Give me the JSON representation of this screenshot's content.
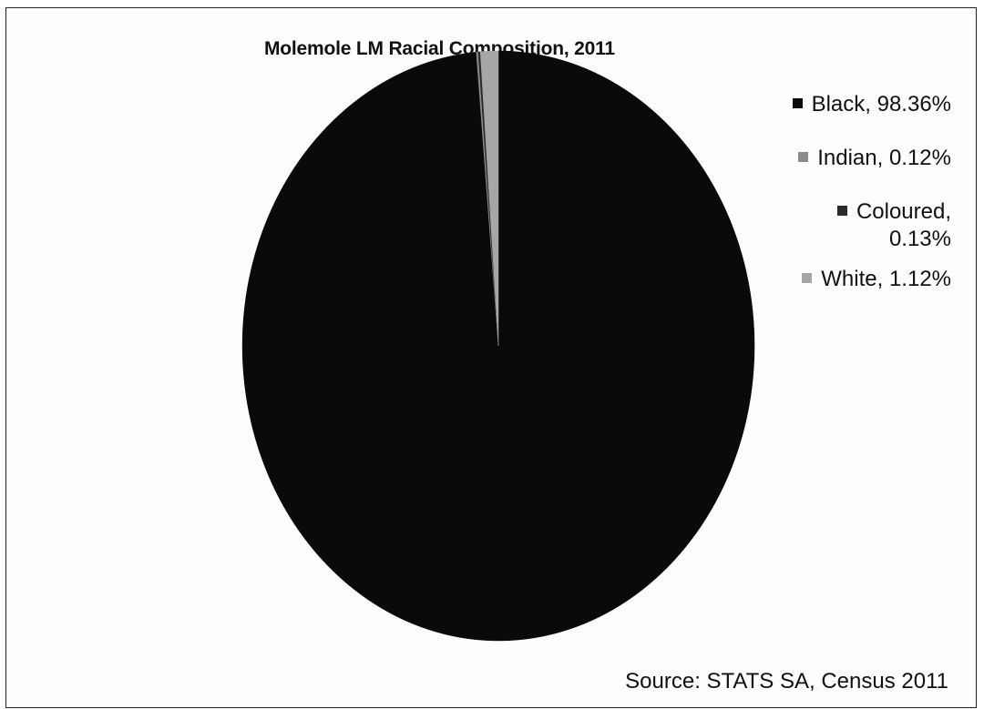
{
  "chart_data": {
    "type": "pie",
    "title": "Molemole LM Racial Composition, 2011",
    "slices": [
      {
        "label": "Black, 98.36%",
        "name": "Black",
        "value": 98.36,
        "color": "#0a0a0a"
      },
      {
        "label": "Indian, 0.12%",
        "name": "Indian",
        "value": 0.12,
        "color": "#8c8c8c"
      },
      {
        "label": "Coloured, 0.13%",
        "name": "Coloured",
        "value": 0.13,
        "color": "#2a2a2a"
      },
      {
        "label": "White, 1.12%",
        "name": "White",
        "value": 1.12,
        "color": "#a6a6a6"
      }
    ],
    "legend": {
      "placement": "right",
      "items": [
        {
          "line1": "Black, 98.36%",
          "line2": ""
        },
        {
          "line1": "Indian, 0.12%",
          "line2": ""
        },
        {
          "line1": "Coloured,",
          "line2": "0.13%"
        },
        {
          "line1": "White, 1.12%",
          "line2": ""
        }
      ]
    },
    "source": "Source: STATS SA, Census 2011"
  }
}
